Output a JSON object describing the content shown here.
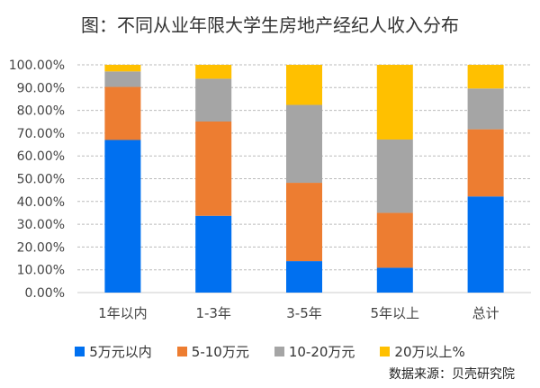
{
  "chart_data": {
    "type": "bar",
    "stacked": true,
    "title": "图：不同从业年限大学生房地产经纪人收入分布",
    "categories": [
      "1年以内",
      "1-3年",
      "3-5年",
      "5年以上",
      "总计"
    ],
    "series": [
      {
        "name": "5万元以内",
        "color": "#0070F0",
        "values": [
          67.0,
          33.7,
          13.8,
          10.9,
          42.2
        ]
      },
      {
        "name": "5-10万元",
        "color": "#ED7D31",
        "values": [
          23.3,
          41.4,
          34.4,
          24.1,
          29.5
        ]
      },
      {
        "name": "10-20万元",
        "color": "#A5A5A5",
        "values": [
          6.8,
          18.8,
          34.2,
          32.2,
          17.9
        ]
      },
      {
        "name": "20万以上%",
        "color": "#FFC000",
        "values": [
          2.9,
          6.1,
          17.6,
          32.8,
          10.4
        ]
      }
    ],
    "yticks": [
      "0.00%",
      "10.00%",
      "20.00%",
      "30.00%",
      "40.00%",
      "50.00%",
      "60.00%",
      "70.00%",
      "80.00%",
      "90.00%",
      "100.00%"
    ],
    "ylim": [
      0,
      100
    ],
    "grid": true,
    "legend": "bottom",
    "source": "数据来源：贝壳研究院"
  }
}
